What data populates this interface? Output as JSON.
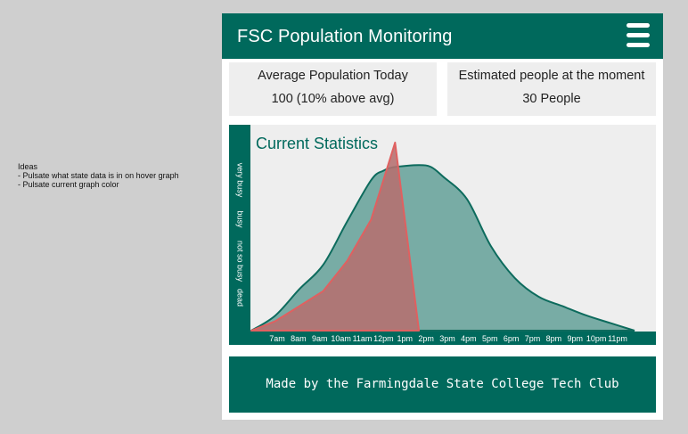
{
  "notes": {
    "title": "Ideas",
    "items": [
      "- Pulsate what state data is in on hover graph",
      "- Pulsate current graph color"
    ]
  },
  "header": {
    "title": "FSC Population Monitoring",
    "menu_icon": "hamburger-menu-icon"
  },
  "stats": {
    "average": {
      "label": "Average Population Today",
      "value": "100 (10% above avg)"
    },
    "current": {
      "label": "Estimated people at the moment",
      "value": "30 People"
    }
  },
  "footer": {
    "text": "Made by the Farmingdale State College Tech Club"
  },
  "colors": {
    "primary": "#00695c",
    "average_fill": "#78aca5",
    "average_stroke": "#0d6b5d",
    "today_fill": "#b56f6f",
    "today_stroke": "#e06060",
    "panel_bg": "#eeeeee"
  },
  "chart_data": {
    "type": "area",
    "title": "Current Statistics",
    "x": [
      "7am",
      "8am",
      "9am",
      "10am",
      "11am",
      "12pm",
      "1pm",
      "2pm",
      "3pm",
      "4pm",
      "5pm",
      "6pm",
      "7pm",
      "8pm",
      "9pm",
      "10pm",
      "11pm"
    ],
    "y_levels": [
      "dead",
      "not so busy",
      "busy",
      "very busy"
    ],
    "ylim": [
      0,
      100
    ],
    "series": [
      {
        "role": "average",
        "x": [
          7,
          8,
          9,
          10,
          11,
          12,
          12.5,
          13,
          14,
          14.5,
          15,
          16,
          17,
          18,
          19,
          20,
          21,
          22,
          23
        ],
        "values": [
          0,
          8,
          22,
          35,
          58,
          80,
          85,
          87,
          88,
          87,
          82,
          70,
          45,
          28,
          18,
          13,
          8,
          4,
          0
        ]
      },
      {
        "role": "today",
        "x": [
          7,
          8,
          9,
          10,
          11,
          12,
          13,
          14
        ],
        "values": [
          0,
          5,
          13,
          21,
          37,
          59,
          100,
          0
        ]
      }
    ]
  }
}
